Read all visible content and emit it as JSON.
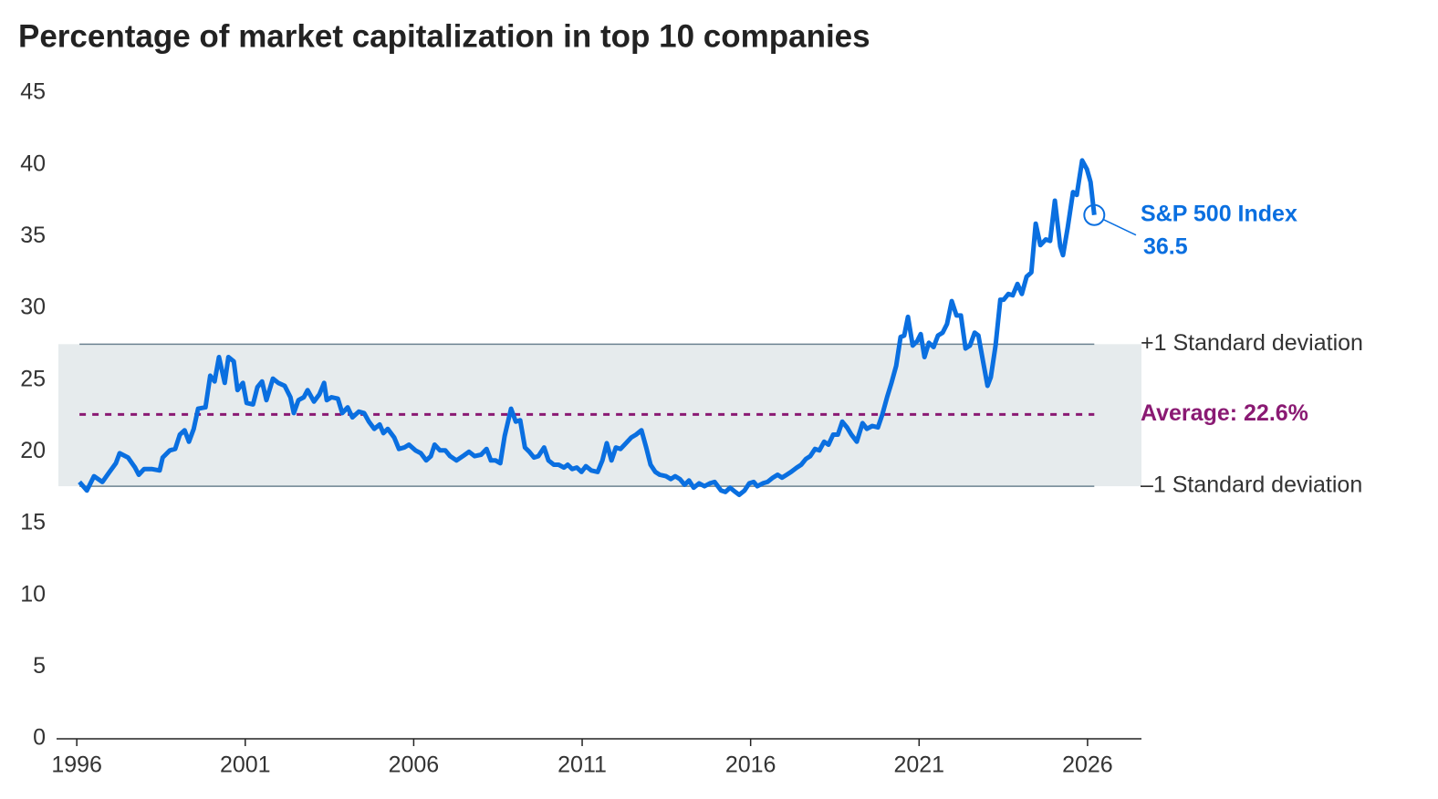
{
  "chart_data": {
    "type": "line",
    "title": "Percentage of market capitalization in top 10 companies",
    "x": [
      1996.08,
      1996.3,
      1996.51,
      1996.76,
      1996.97,
      1997.16,
      1997.27,
      1997.52,
      1997.73,
      1997.84,
      1998.0,
      1998.22,
      1998.46,
      1998.55,
      1998.76,
      1998.92,
      1999.06,
      1999.2,
      1999.33,
      1999.47,
      1999.6,
      1999.82,
      1999.96,
      2000.09,
      2000.22,
      2000.39,
      2000.5,
      2000.66,
      2000.77,
      2000.93,
      2001.04,
      2001.23,
      2001.36,
      2001.5,
      2001.63,
      2001.82,
      2001.98,
      2002.17,
      2002.34,
      2002.44,
      2002.58,
      2002.74,
      2002.85,
      2003.04,
      2003.2,
      2003.34,
      2003.42,
      2003.56,
      2003.75,
      2003.88,
      2004.04,
      2004.18,
      2004.37,
      2004.53,
      2004.67,
      2004.83,
      2004.99,
      2005.1,
      2005.23,
      2005.42,
      2005.56,
      2005.72,
      2005.86,
      2006.05,
      2006.21,
      2006.37,
      2006.51,
      2006.62,
      2006.78,
      2006.94,
      2007.08,
      2007.27,
      2007.46,
      2007.64,
      2007.81,
      2008.0,
      2008.16,
      2008.29,
      2008.43,
      2008.57,
      2008.7,
      2008.89,
      2009.03,
      2009.16,
      2009.3,
      2009.43,
      2009.57,
      2009.7,
      2009.87,
      2010.0,
      2010.16,
      2010.3,
      2010.46,
      2010.57,
      2010.7,
      2010.84,
      2010.98,
      2011.11,
      2011.27,
      2011.46,
      2011.6,
      2011.73,
      2011.87,
      2012.0,
      2012.14,
      2012.3,
      2012.46,
      2012.6,
      2012.76,
      2012.9,
      2013.03,
      2013.17,
      2013.3,
      2013.49,
      2013.63,
      2013.76,
      2013.9,
      2014.04,
      2014.17,
      2014.31,
      2014.47,
      2014.63,
      2014.79,
      2014.93,
      2015.12,
      2015.25,
      2015.39,
      2015.55,
      2015.66,
      2015.82,
      2015.96,
      2016.09,
      2016.2,
      2016.36,
      2016.5,
      2016.66,
      2016.8,
      2016.93,
      2017.07,
      2017.2,
      2017.37,
      2017.5,
      2017.64,
      2017.77,
      2017.91,
      2018.04,
      2018.18,
      2018.31,
      2018.45,
      2018.59,
      2018.72,
      2018.86,
      2018.99,
      2019.15,
      2019.32,
      2019.45,
      2019.61,
      2019.78,
      2019.91,
      2020.05,
      2020.18,
      2020.32,
      2020.45,
      2020.56,
      2020.67,
      2020.81,
      2020.94,
      2021.05,
      2021.16,
      2021.29,
      2021.43,
      2021.56,
      2021.7,
      2021.83,
      2021.97,
      2022.11,
      2022.24,
      2022.38,
      2022.51,
      2022.65,
      2022.76,
      2022.89,
      2023.03,
      2023.13,
      2023.27,
      2023.41,
      2023.51,
      2023.65,
      2023.78,
      2023.92,
      2024.05,
      2024.19,
      2024.33,
      2024.46,
      2024.6,
      2024.76,
      2024.89,
      2025.03,
      2025.19,
      2025.27,
      2025.41,
      2025.57,
      2025.68,
      2025.84,
      2025.98,
      2026.09,
      2026.2
    ],
    "series": [
      {
        "name": "S&P 500 Index",
        "color": "#0a6fe0",
        "values": [
          17.9,
          17.3,
          18.3,
          17.9,
          18.6,
          19.2,
          19.9,
          19.6,
          18.9,
          18.4,
          18.8,
          18.8,
          18.7,
          19.6,
          20.1,
          20.2,
          21.2,
          21.5,
          20.7,
          21.6,
          23.0,
          23.1,
          25.3,
          24.9,
          26.6,
          24.8,
          26.6,
          26.3,
          24.3,
          24.8,
          23.4,
          23.3,
          24.5,
          24.9,
          23.6,
          25.1,
          24.8,
          24.6,
          23.8,
          22.7,
          23.6,
          23.8,
          24.3,
          23.5,
          24.0,
          24.8,
          23.6,
          23.8,
          23.7,
          22.7,
          23.1,
          22.4,
          22.8,
          22.7,
          22.1,
          21.6,
          21.9,
          21.3,
          21.6,
          21.0,
          20.2,
          20.3,
          20.5,
          20.1,
          19.9,
          19.4,
          19.7,
          20.5,
          20.1,
          20.1,
          19.7,
          19.4,
          19.7,
          20.0,
          19.7,
          19.8,
          20.2,
          19.4,
          19.4,
          19.2,
          21.1,
          23.0,
          22.1,
          22.2,
          20.3,
          20.0,
          19.6,
          19.7,
          20.3,
          19.4,
          19.1,
          19.1,
          18.9,
          19.1,
          18.8,
          18.9,
          18.6,
          19.0,
          18.7,
          18.6,
          19.4,
          20.6,
          19.4,
          20.3,
          20.2,
          20.6,
          21.0,
          21.2,
          21.5,
          20.3,
          19.1,
          18.6,
          18.4,
          18.3,
          18.1,
          18.3,
          18.1,
          17.7,
          18.0,
          17.5,
          17.8,
          17.6,
          17.8,
          17.9,
          17.3,
          17.2,
          17.5,
          17.2,
          17.0,
          17.3,
          17.8,
          17.9,
          17.6,
          17.8,
          17.9,
          18.2,
          18.4,
          18.2,
          18.4,
          18.6,
          18.9,
          19.1,
          19.5,
          19.7,
          20.2,
          20.1,
          20.7,
          20.5,
          21.2,
          21.2,
          22.1,
          21.7,
          21.2,
          20.7,
          22.0,
          21.6,
          21.8,
          21.7,
          22.6,
          23.8,
          24.8,
          26.0,
          28.0,
          28.1,
          29.4,
          27.4,
          27.7,
          28.2,
          26.6,
          27.6,
          27.3,
          28.1,
          28.3,
          28.9,
          30.5,
          29.5,
          29.5,
          27.2,
          27.4,
          28.3,
          28.1,
          26.4,
          24.6,
          25.2,
          27.4,
          30.6,
          30.6,
          31.0,
          30.9,
          31.7,
          31.0,
          32.2,
          32.5,
          35.9,
          34.4,
          34.8,
          34.7,
          37.5,
          34.3,
          33.7,
          35.6,
          38.1,
          37.9,
          40.3,
          39.7,
          38.8,
          36.5
        ]
      }
    ],
    "reference_lines": [
      {
        "value": 27.5,
        "label": "+1 Standard deviation"
      },
      {
        "value": 22.6,
        "label": "Average: 22.6%"
      },
      {
        "value": 17.6,
        "label": "–1 Standard deviation"
      }
    ],
    "band_color": "#e6ebed",
    "average_color": "#8a1a73",
    "sd_line_color": "#6b8290",
    "xlim": [
      1995.4,
      2027.6
    ],
    "xticks": [
      1996,
      2001,
      2006,
      2011,
      2016,
      2021,
      2026
    ],
    "ylim": [
      0,
      45
    ],
    "yticks": [
      0,
      5,
      10,
      15,
      20,
      25,
      30,
      35,
      40,
      45
    ],
    "grid": false
  }
}
